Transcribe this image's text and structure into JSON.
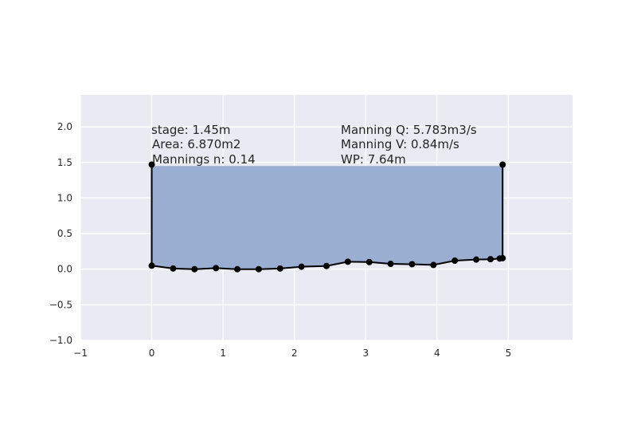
{
  "chart_data": {
    "type": "area",
    "title": "",
    "xlabel": "",
    "ylabel": "",
    "xlim": [
      -1,
      5.9
    ],
    "ylim": [
      -1.0,
      2.45
    ],
    "xticks": [
      -1,
      0,
      1,
      2,
      3,
      4,
      5
    ],
    "xtick_labels": [
      "−1",
      "0",
      "1",
      "2",
      "3",
      "4",
      "5"
    ],
    "yticks": [
      -1.0,
      -0.5,
      0.0,
      0.5,
      1.0,
      1.5,
      2.0
    ],
    "ytick_labels": [
      "−1.0",
      "−0.5",
      "0.0",
      "0.5",
      "1.0",
      "1.5",
      "2.0"
    ],
    "grid": true,
    "colors": {
      "plot_background": "#EAEAF2",
      "grid": "#FFFFFF",
      "fill": "#9AAED2",
      "line": "#000000"
    },
    "stage": 1.45,
    "profile": {
      "x": [
        0.0,
        0.0,
        0.3,
        0.6,
        0.9,
        1.2,
        1.5,
        1.8,
        2.1,
        2.45,
        2.75,
        3.05,
        3.35,
        3.65,
        3.95,
        4.25,
        4.55,
        4.75,
        4.88,
        4.92,
        4.92
      ],
      "y": [
        1.47,
        0.05,
        0.01,
        0.0,
        0.015,
        0.0,
        0.0,
        0.01,
        0.035,
        0.045,
        0.105,
        0.1,
        0.075,
        0.07,
        0.06,
        0.12,
        0.135,
        0.14,
        0.15,
        0.155,
        1.47
      ]
    },
    "annotations_left": {
      "stage": "stage: 1.45m",
      "area": "Area: 6.870m2",
      "mannings_n": "Mannings n: 0.14"
    },
    "annotations_right": {
      "manning_q": "Manning Q: 5.783m3/s",
      "manning_v": "Manning V: 0.84m/s",
      "wp": "WP: 7.64m"
    }
  }
}
